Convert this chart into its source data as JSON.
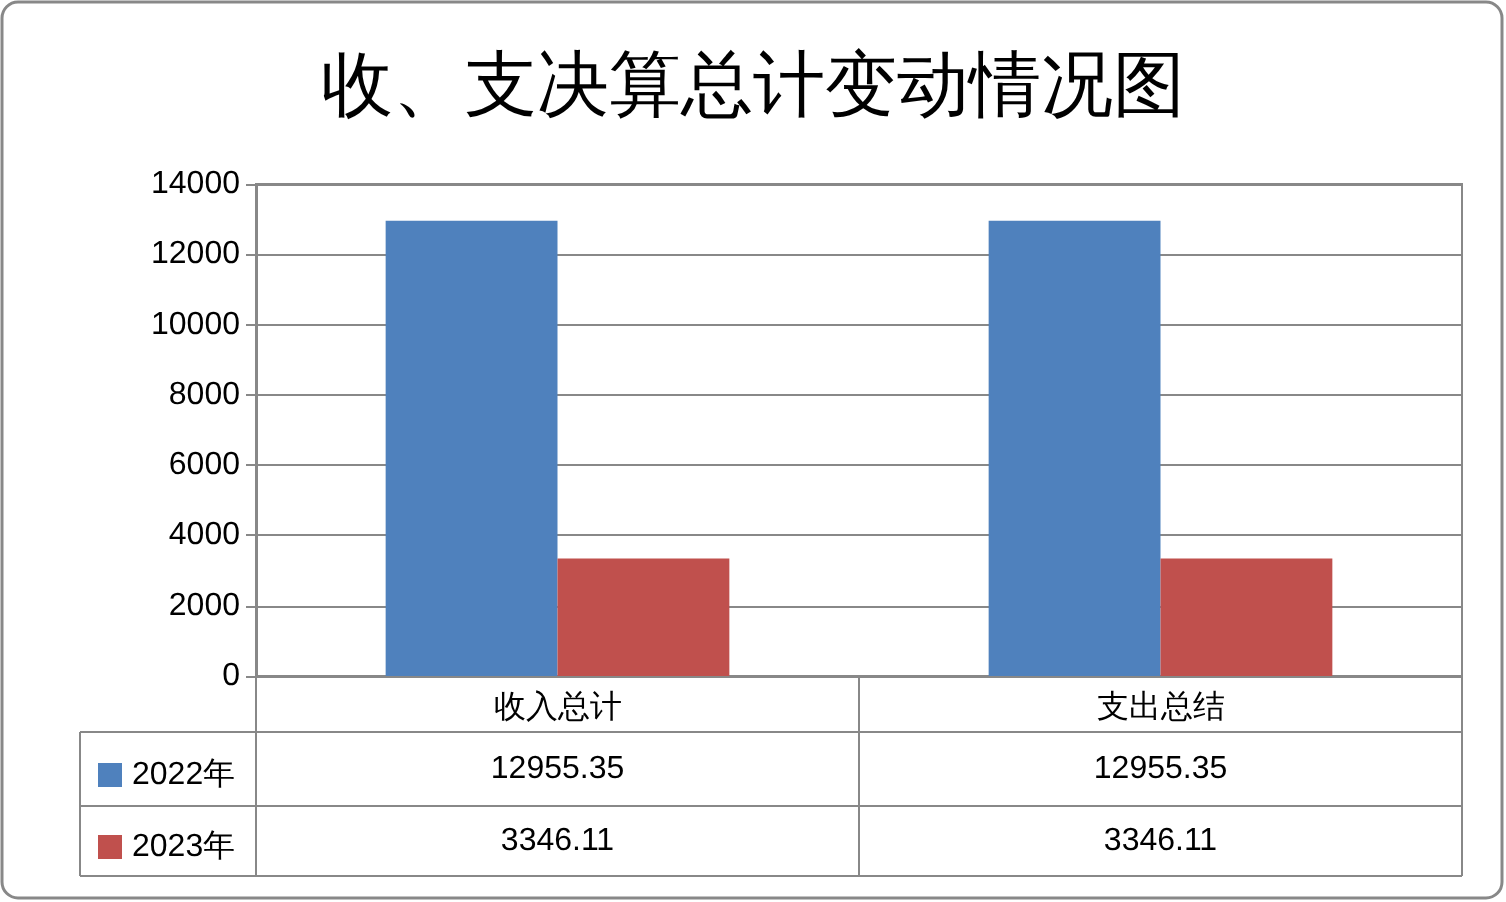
{
  "chart_data": {
    "type": "bar",
    "title": "收、支决算总计变动情况图",
    "categories": [
      "收入总计",
      "支出总结"
    ],
    "series": [
      {
        "name": "2022年",
        "color": "#4f81bd",
        "values": [
          12955.35,
          12955.35
        ]
      },
      {
        "name": "2023年",
        "color": "#c0504d",
        "values": [
          3346.11,
          3346.11
        ]
      }
    ],
    "ylim": [
      0,
      14000
    ],
    "yticks": [
      0,
      2000,
      4000,
      6000,
      8000,
      10000,
      12000,
      14000
    ],
    "grid": "y",
    "legend": "bottom left",
    "data_labels": true
  }
}
